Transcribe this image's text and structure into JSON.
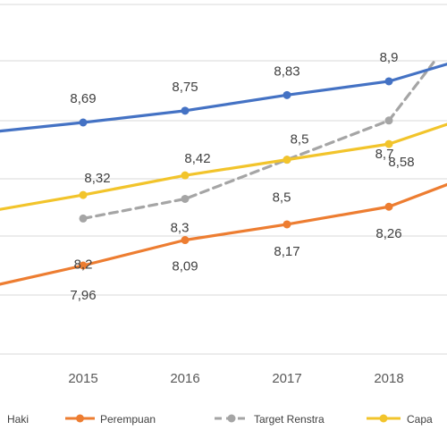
{
  "chart_data": {
    "type": "line",
    "categories": [
      "2015",
      "2016",
      "2017",
      "2018"
    ],
    "grid": true,
    "legend_position": "bottom",
    "ylim": [
      7.4,
      9.0
    ],
    "series": [
      {
        "name": "Laki-Laki",
        "legend_text": "Haki",
        "color": "#4472C4",
        "dashed": false,
        "markers": true,
        "values": [
          8.69,
          8.75,
          8.83,
          8.9
        ],
        "labels": [
          "8,69",
          "8,75",
          "8,83",
          "8,9"
        ]
      },
      {
        "name": "Perempuan",
        "color": "#ED7D31",
        "dashed": false,
        "markers": true,
        "values": [
          7.96,
          8.09,
          8.17,
          8.26
        ],
        "labels": [
          "7,96",
          "8,09",
          "8,17",
          "8,26"
        ]
      },
      {
        "name": "Target Renstra",
        "color": "#A5A5A5",
        "dashed": true,
        "markers": true,
        "values": [
          8.2,
          8.3,
          8.5,
          8.7
        ],
        "labels": [
          "8,2",
          "8,3",
          "8,5",
          "8,7"
        ]
      },
      {
        "name": "Capaian",
        "legend_text": "Capa",
        "color": "#F2C42B",
        "dashed": false,
        "markers": true,
        "values": [
          8.32,
          8.42,
          8.5,
          8.58
        ],
        "labels": [
          "8,32",
          "8,42",
          "8,5",
          "8,58"
        ]
      }
    ]
  }
}
